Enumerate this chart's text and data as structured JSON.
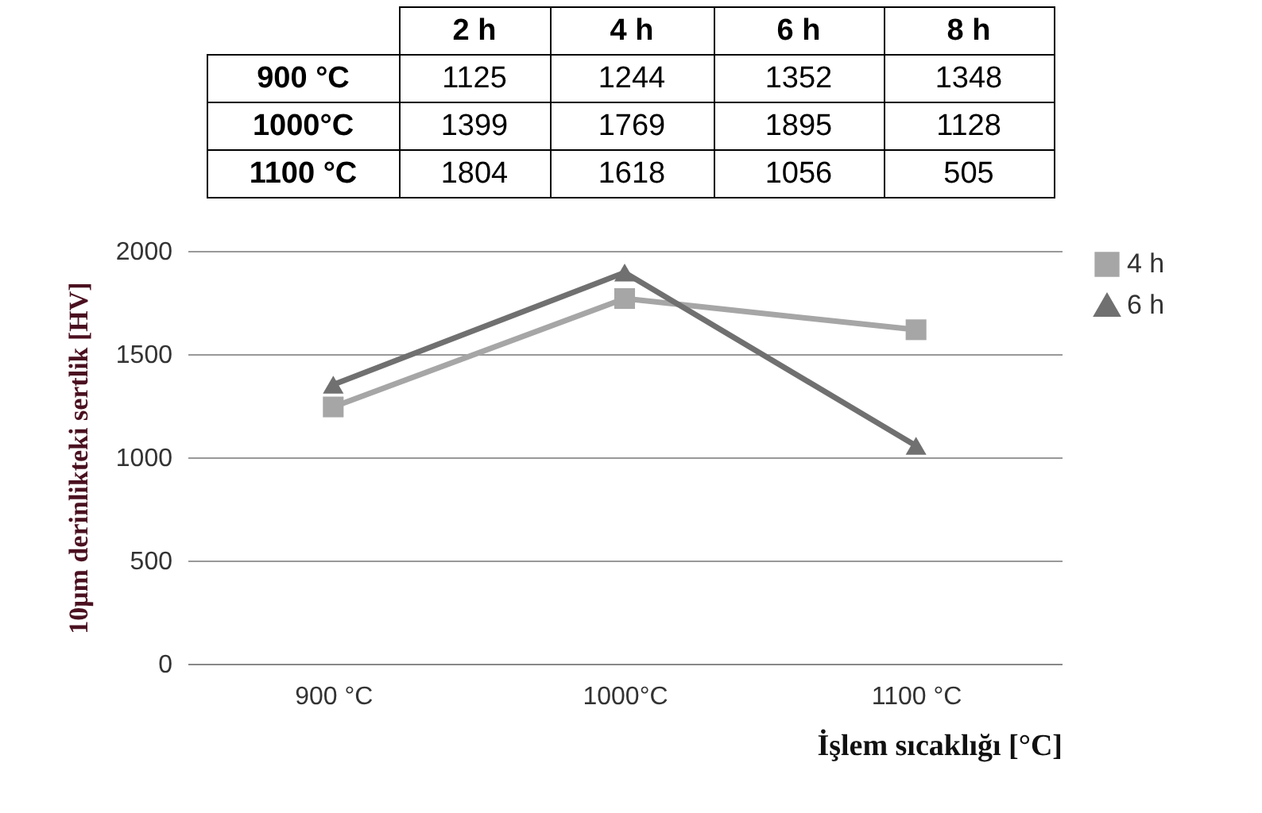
{
  "chart_data": {
    "type": "line",
    "xlabel": "İşlem sıcaklığı [°C]",
    "ylabel": "10μm derinlikteki sertlik [HV]",
    "categories": [
      "900 °C",
      "1000°C",
      "1100 °C"
    ],
    "series": [
      {
        "name": "4 h",
        "color": "#a6a6a6",
        "marker": "square",
        "values": [
          1244,
          1769,
          1618
        ]
      },
      {
        "name": "6 h",
        "color": "#707070",
        "marker": "triangle",
        "values": [
          1352,
          1895,
          1056
        ]
      }
    ],
    "ylim": [
      0,
      2000
    ],
    "yticks": [
      0,
      500,
      1000,
      1500,
      2000
    ],
    "grid": "y",
    "legend": "right",
    "line_style": "solid",
    "annotations": [
      "2 h",
      "4 h",
      "6 h",
      "8 h",
      "900 °C",
      "1125",
      "1244",
      "1352",
      "1348",
      "1000°C",
      "1399",
      "1769",
      "1895",
      "1128",
      "1100 °C",
      "1804",
      "1618",
      "1056",
      "505"
    ]
  }
}
